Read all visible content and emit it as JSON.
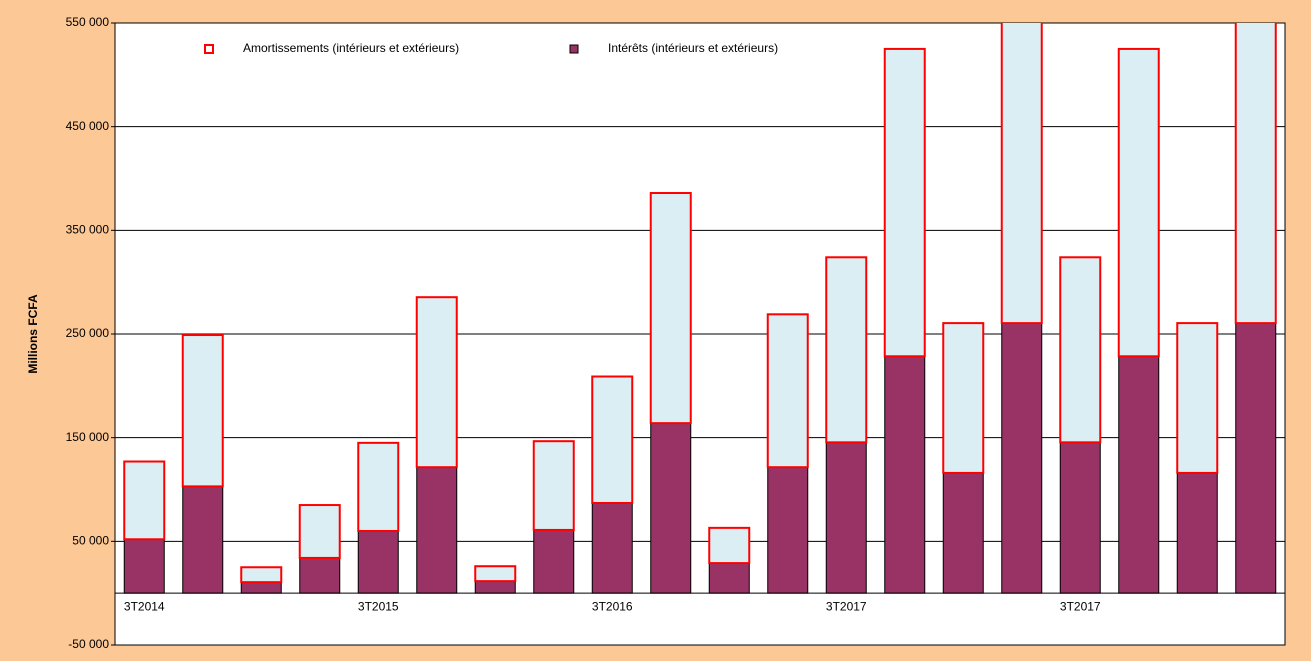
{
  "chart_data": {
    "type": "stacked_bar",
    "ylabel": "Millions FCFA",
    "categories": [
      "3T2014",
      null,
      null,
      null,
      "3T2015",
      null,
      null,
      null,
      "3T2016",
      null,
      null,
      null,
      "3T2017",
      null,
      null,
      null,
      "3T2017",
      null,
      null,
      null
    ],
    "series": [
      {
        "name": "Amortissements (intérieurs et extérieurs)",
        "color": "#daeef3",
        "edgecolor": "#ff0000",
        "values": [
          75000,
          146000,
          14400,
          51000,
          85000,
          164000,
          14400,
          85600,
          122000,
          222000,
          34000,
          147500,
          178500,
          296500,
          144500,
          300000,
          178500,
          296500,
          144500,
          300000
        ]
      },
      {
        "name": "Intérêts (intérieurs et extérieurs)",
        "color": "#993366",
        "edgecolor": "#000000",
        "values": [
          52000,
          103000,
          10600,
          34000,
          60000,
          121500,
          11600,
          61000,
          87000,
          164000,
          29000,
          121500,
          145500,
          228500,
          116000,
          260500,
          145500,
          228500,
          116000,
          260500
        ]
      }
    ],
    "ylim": [
      -50000,
      550000
    ],
    "yticks": [
      {
        "value": -50000,
        "label": "-50 000"
      },
      {
        "value": 50000,
        "label": "50 000"
      },
      {
        "value": 150000,
        "label": "150 000"
      },
      {
        "value": 250000,
        "label": "250 000"
      },
      {
        "value": 350000,
        "label": "350 000"
      },
      {
        "value": 450000,
        "label": "450 000"
      },
      {
        "value": 550000,
        "label": "550 000"
      }
    ],
    "grid": true,
    "legend": "top"
  }
}
